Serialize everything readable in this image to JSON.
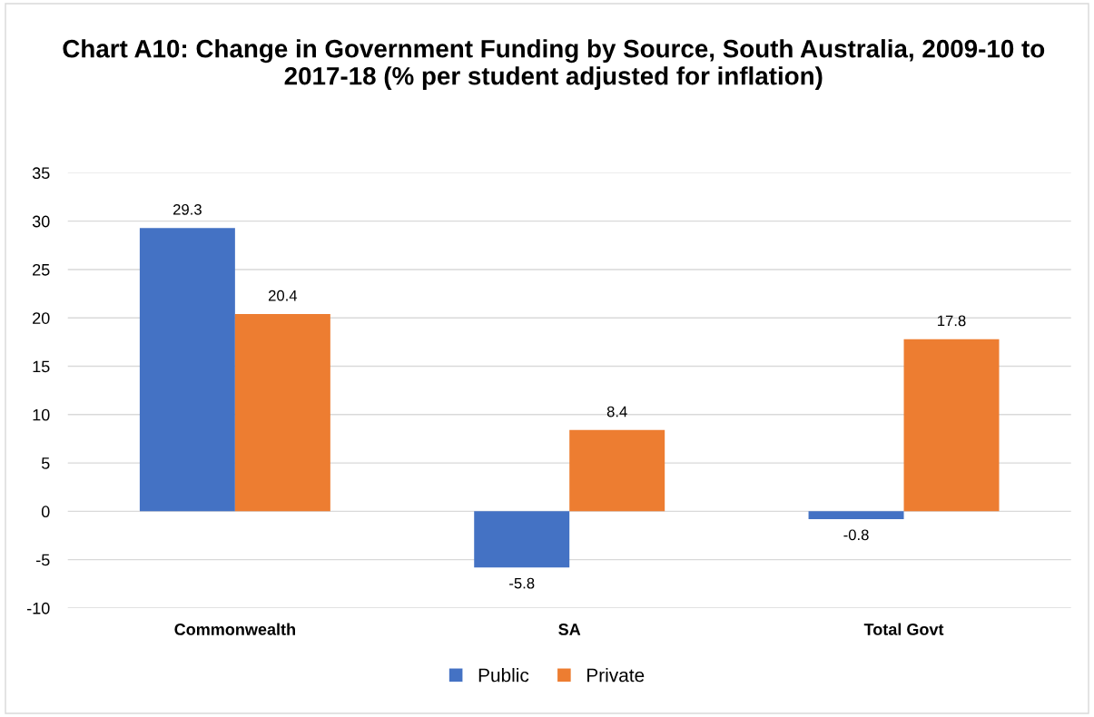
{
  "chart_data": {
    "type": "bar",
    "title": "Chart A10: Change in Government Funding by Source, South Australia, 2009-10 to 2017-18 (% per student adjusted for inflation)",
    "categories": [
      "Commonwealth",
      "SA",
      "Total Govt"
    ],
    "series": [
      {
        "name": "Public",
        "color": "#4472c4",
        "values": [
          29.3,
          -5.8,
          -0.8
        ]
      },
      {
        "name": "Private",
        "color": "#ed7d31",
        "values": [
          20.4,
          8.4,
          17.8
        ]
      }
    ],
    "ylim": [
      -10,
      35
    ],
    "yticks": [
      -10,
      -5,
      0,
      5,
      10,
      15,
      20,
      25,
      30,
      35
    ],
    "grid": "y",
    "legend": "bottom",
    "data_labels": true
  }
}
